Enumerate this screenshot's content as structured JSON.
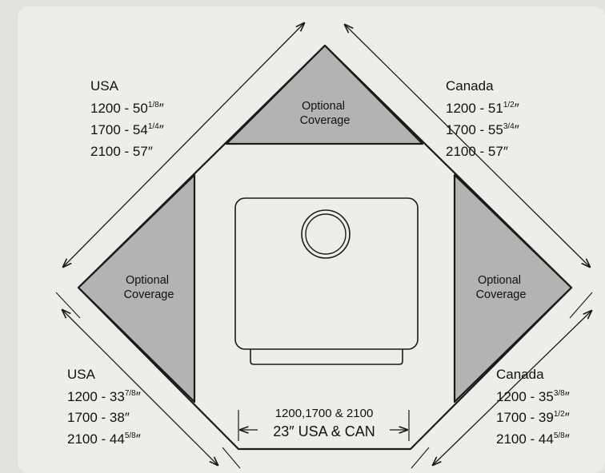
{
  "optional_label": [
    "Optional",
    "Coverage"
  ],
  "usa_diagonal": {
    "title": "USA",
    "rows": [
      {
        "main": "1200 - 50",
        "frac": "1/8",
        "unit": "″"
      },
      {
        "main": "1700 - 54",
        "frac": "1/4",
        "unit": "″"
      },
      {
        "main": "2100 - 57″",
        "frac": "",
        "unit": ""
      }
    ]
  },
  "canada_diagonal": {
    "title": "Canada",
    "rows": [
      {
        "main": "1200 - 51",
        "frac": "1/2",
        "unit": "″"
      },
      {
        "main": "1700 - 55",
        "frac": "3/4",
        "unit": "″"
      },
      {
        "main": "2100 - 57″",
        "frac": "",
        "unit": ""
      }
    ]
  },
  "usa_side": {
    "title": "USA",
    "rows": [
      {
        "main": "1200 - 33",
        "frac": "7/8",
        "unit": "″"
      },
      {
        "main": "1700 - 38″",
        "frac": "",
        "unit": ""
      },
      {
        "main": "2100 - 44",
        "frac": "5/8",
        "unit": "″"
      }
    ]
  },
  "canada_side": {
    "title": "Canada",
    "rows": [
      {
        "main": "1200 - 35",
        "frac": "3/8",
        "unit": "″"
      },
      {
        "main": "1700 - 39",
        "frac": "1/2",
        "unit": "″"
      },
      {
        "main": "2100 - 44",
        "frac": "5/8",
        "unit": "″"
      }
    ]
  },
  "bottom_width": {
    "models": "1200,1700 & 2100",
    "value": "23″ USA & CAN"
  },
  "colors": {
    "background": "#e4e2df",
    "panel": "#eeedea",
    "coverage_fill": "#b4b3b1",
    "line": "#1a1a1a"
  }
}
